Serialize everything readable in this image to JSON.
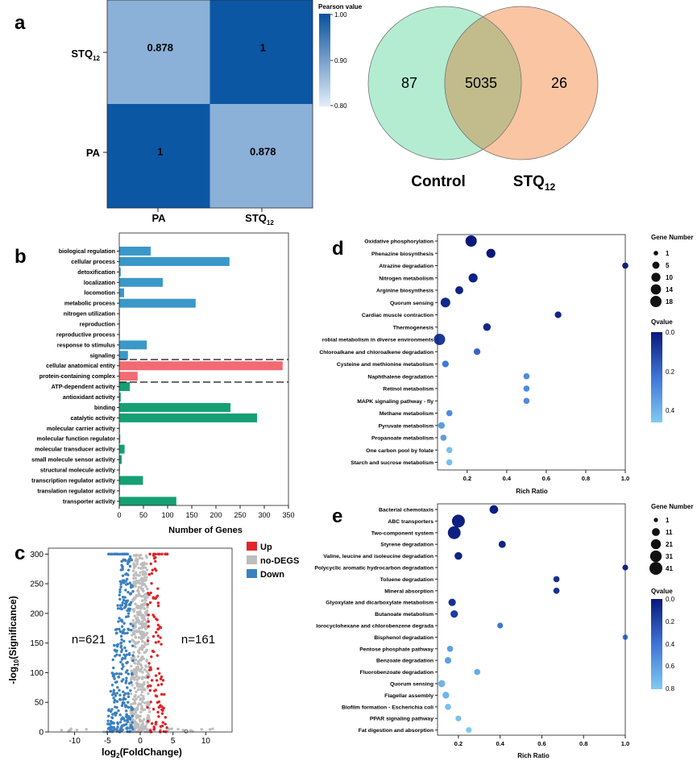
{
  "panel_letters": [
    "a",
    "b",
    "c",
    "d",
    "e"
  ],
  "colors": {
    "heat_dark": "#0b57a4",
    "heat_light": "#8cb1d8",
    "venn_left": "#b4ecd2",
    "venn_right": "#fac5a3",
    "venn_overlap": "#c2bc8c",
    "go_bio": "#3a98c8",
    "go_cell": "#f26a72",
    "go_mol": "#15a074",
    "volcano_up": "#e0242a",
    "volcano_none": "#bdbdbd",
    "volcano_down": "#3b80c0",
    "q_low": "#08197a",
    "q_high": "#7fcbf2"
  },
  "chart_data": [
    {
      "type": "heatmap",
      "rows": [
        "STQ12",
        "PA"
      ],
      "cols": [
        "PA",
        "STQ12"
      ],
      "row_labels": [
        {
          "main": "STQ",
          "sub": "12"
        },
        {
          "main": "PA",
          "sub": ""
        }
      ],
      "col_labels": [
        {
          "main": "PA",
          "sub": ""
        },
        {
          "main": "STQ",
          "sub": "12"
        }
      ],
      "values": [
        [
          0.878,
          1
        ],
        [
          1,
          0.878
        ]
      ],
      "display": [
        [
          "0.878",
          "1"
        ],
        [
          "1",
          "0.878"
        ]
      ],
      "legend": {
        "title": "Pearson value",
        "ticks": [
          "1.00",
          "0.90",
          "0.80"
        ],
        "range": [
          0.8,
          1.0
        ]
      }
    },
    {
      "type": "venn",
      "sets": [
        {
          "main": "Control",
          "sub": ""
        },
        {
          "main": "STQ",
          "sub": "12"
        }
      ],
      "only_left": "87",
      "overlap": "5035",
      "only_right": "26"
    },
    {
      "type": "bar",
      "orientation": "horizontal",
      "xlabel": "Number of Genes",
      "xlim": [
        0,
        350
      ],
      "xticks": [
        "0",
        "50",
        "100",
        "150",
        "200",
        "250",
        "300",
        "350"
      ],
      "categories": [
        {
          "label": "biological regulation",
          "value": 65,
          "group": "bio"
        },
        {
          "label": "cellular process",
          "value": 228,
          "group": "bio"
        },
        {
          "label": "detoxification",
          "value": 3,
          "group": "bio"
        },
        {
          "label": "localization",
          "value": 90,
          "group": "bio"
        },
        {
          "label": "locomotion",
          "value": 10,
          "group": "bio"
        },
        {
          "label": "metabolic process",
          "value": 158,
          "group": "bio"
        },
        {
          "label": "nitrogen utilization",
          "value": 1,
          "group": "bio"
        },
        {
          "label": "reproduction",
          "value": 1,
          "group": "bio"
        },
        {
          "label": "reproductive process",
          "value": 1,
          "group": "bio"
        },
        {
          "label": "response to stimulus",
          "value": 57,
          "group": "bio"
        },
        {
          "label": "signaling",
          "value": 18,
          "group": "bio"
        },
        {
          "label": "cellular anatomical entity",
          "value": 338,
          "group": "cell"
        },
        {
          "label": "protein-containing complex",
          "value": 38,
          "group": "cell"
        },
        {
          "label": "ATP-dependent activity",
          "value": 22,
          "group": "mol"
        },
        {
          "label": "antioxidant activity",
          "value": 3,
          "group": "mol"
        },
        {
          "label": "binding",
          "value": 230,
          "group": "mol"
        },
        {
          "label": "catalytic activity",
          "value": 285,
          "group": "mol"
        },
        {
          "label": "molecular carrier activity",
          "value": 1,
          "group": "mol"
        },
        {
          "label": "molecular function regulator",
          "value": 2,
          "group": "mol"
        },
        {
          "label": "molecular transducer activity",
          "value": 11,
          "group": "mol"
        },
        {
          "label": "small molecule sensor activity",
          "value": 5,
          "group": "mol"
        },
        {
          "label": "structural molecule activity",
          "value": 1,
          "group": "mol"
        },
        {
          "label": "transcription regulator activity",
          "value": 49,
          "group": "mol"
        },
        {
          "label": "translation regulator activity",
          "value": 1,
          "group": "mol"
        },
        {
          "label": "transporter activity",
          "value": 118,
          "group": "mol"
        }
      ]
    },
    {
      "type": "scatter",
      "subtype": "volcano",
      "xlabel": {
        "pre": "log",
        "sub": "2",
        "post": "(FoldChange)"
      },
      "ylabel": {
        "pre": "-log",
        "sub": "10",
        "post": "(Significance)"
      },
      "xlim": [
        -14,
        14
      ],
      "ylim": [
        0,
        310
      ],
      "xticks": [
        "-10",
        "-5",
        "0",
        "5",
        "10"
      ],
      "yticks": [
        "0",
        "50",
        "100",
        "150",
        "200",
        "250",
        "300"
      ],
      "legend": [
        "Up",
        "no-DEGS",
        "Down"
      ],
      "annotations": [
        "n=621",
        "n=161"
      ],
      "counts": {
        "down": 621,
        "up": 161
      }
    },
    {
      "type": "scatter",
      "subtype": "bubble",
      "xlabel": "Rich Ratio",
      "xlim": [
        0.05,
        1.0
      ],
      "xticks": [
        "0.2",
        "0.4",
        "0.6",
        "0.8",
        "1.0"
      ],
      "size_legend": {
        "title": "Gene Number",
        "labels": [
          "1",
          "5",
          "10",
          "14",
          "18"
        ],
        "values": [
          1,
          5,
          10,
          14,
          18
        ]
      },
      "q_legend": {
        "title": "Qvalue",
        "ticks": [
          "0.0",
          "0.2",
          "0.4"
        ],
        "range": [
          0,
          0.48
        ]
      },
      "points": [
        {
          "label": "Oxidative phosphorylation",
          "x": 0.22,
          "size": 18,
          "q": 0.0
        },
        {
          "label": "Phenazine biosynthesis",
          "x": 0.32,
          "size": 10,
          "q": 0.0
        },
        {
          "label": "Atrazine degradation",
          "x": 1.0,
          "size": 3,
          "q": 0.02
        },
        {
          "label": "Nitrogen metabolism",
          "x": 0.23,
          "size": 10,
          "q": 0.02
        },
        {
          "label": "Arginine biosynthesis",
          "x": 0.16,
          "size": 7,
          "q": 0.03
        },
        {
          "label": "Quorum sensing",
          "x": 0.09,
          "size": 12,
          "q": 0.04
        },
        {
          "label": "Cardiac muscle contraction",
          "x": 0.66,
          "size": 4,
          "q": 0.03
        },
        {
          "label": "Thermogenesis",
          "x": 0.3,
          "size": 6,
          "q": 0.04
        },
        {
          "label": "robial metabolism in diverse environments",
          "x": 0.06,
          "size": 18,
          "q": 0.08
        },
        {
          "label": "Chloroalkane and chloroalkene degradation",
          "x": 0.25,
          "size": 4,
          "q": 0.2
        },
        {
          "label": "Cysteine and methionine metabolism",
          "x": 0.09,
          "size": 4,
          "q": 0.25
        },
        {
          "label": "Naphthalene degradation",
          "x": 0.5,
          "size": 3,
          "q": 0.3
        },
        {
          "label": "Retinol metabolism",
          "x": 0.5,
          "size": 3,
          "q": 0.3
        },
        {
          "label": "MAPK signaling pathway - fly",
          "x": 0.5,
          "size": 3,
          "q": 0.3
        },
        {
          "label": "Methane metabolism",
          "x": 0.11,
          "size": 3,
          "q": 0.3
        },
        {
          "label": "Pyruvate metabolism",
          "x": 0.07,
          "size": 4,
          "q": 0.35
        },
        {
          "label": "Propanoate metabolism",
          "x": 0.08,
          "size": 3,
          "q": 0.35
        },
        {
          "label": "One carbon pool by folate",
          "x": 0.11,
          "size": 3,
          "q": 0.45
        },
        {
          "label": "Starch and sucrose metabolism",
          "x": 0.11,
          "size": 3,
          "q": 0.45
        }
      ]
    },
    {
      "type": "scatter",
      "subtype": "bubble",
      "xlabel": "Rich Ratio",
      "xlim": [
        0.1,
        1.0
      ],
      "xticks": [
        "0.2",
        "0.4",
        "0.6",
        "0.8",
        "1.0"
      ],
      "size_legend": {
        "title": "Gene Number",
        "labels": [
          "1",
          "11",
          "21",
          "31",
          "41"
        ],
        "values": [
          1,
          11,
          21,
          31,
          41
        ]
      },
      "q_legend": {
        "title": "Qvalue",
        "ticks": [
          "0.0",
          "0.2",
          "0.4",
          "0.6",
          "0.8"
        ],
        "range": [
          0,
          0.8
        ]
      },
      "points": [
        {
          "label": "Bacterial chemotaxis",
          "x": 0.37,
          "size": 14,
          "q": 0.02
        },
        {
          "label": "ABC transporters",
          "x": 0.2,
          "size": 41,
          "q": 0.03
        },
        {
          "label": "Two-component system",
          "x": 0.18,
          "size": 40,
          "q": 0.03
        },
        {
          "label": "Styrene degradation",
          "x": 0.41,
          "size": 8,
          "q": 0.05
        },
        {
          "label": "Valine, leucine and isoleucine degradation",
          "x": 0.2,
          "size": 10,
          "q": 0.05
        },
        {
          "label": "Polycyclic aromatic hydrocarbon degradation",
          "x": 1.0,
          "size": 4,
          "q": 0.05
        },
        {
          "label": "Toluene degradation",
          "x": 0.67,
          "size": 5,
          "q": 0.1
        },
        {
          "label": "Mineral absorption",
          "x": 0.67,
          "size": 5,
          "q": 0.1
        },
        {
          "label": "Glyoxylate and dicarboxylate metabolism",
          "x": 0.17,
          "size": 9,
          "q": 0.1
        },
        {
          "label": "Butanoate metabolism",
          "x": 0.18,
          "size": 9,
          "q": 0.15
        },
        {
          "label": "lorocyclohexane and chlorobenzene degrada",
          "x": 0.4,
          "size": 4,
          "q": 0.4
        },
        {
          "label": "Bisphenol degradation",
          "x": 1.0,
          "size": 3,
          "q": 0.4
        },
        {
          "label": "Pentose phosphate pathway",
          "x": 0.16,
          "size": 5,
          "q": 0.6
        },
        {
          "label": "Benzoate degradation",
          "x": 0.15,
          "size": 6,
          "q": 0.6
        },
        {
          "label": "Fluorobenzoate degradation",
          "x": 0.29,
          "size": 5,
          "q": 0.65
        },
        {
          "label": "Quorum sensing",
          "x": 0.12,
          "size": 8,
          "q": 0.7
        },
        {
          "label": "Flagellar assembly",
          "x": 0.14,
          "size": 7,
          "q": 0.7
        },
        {
          "label": "Biofilm formation - Escherichia coli",
          "x": 0.15,
          "size": 5,
          "q": 0.75
        },
        {
          "label": "PPAR signaling pathway",
          "x": 0.2,
          "size": 4,
          "q": 0.75
        },
        {
          "label": "Fat digestion and absorption",
          "x": 0.25,
          "size": 4,
          "q": 0.8
        }
      ]
    }
  ]
}
